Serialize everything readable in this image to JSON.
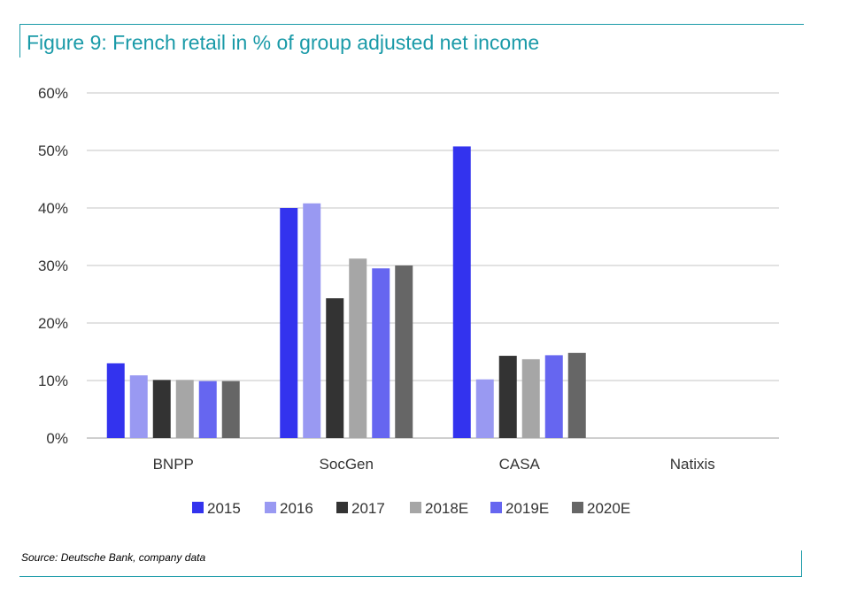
{
  "title": "Figure 9: French retail in % of group adjusted net income",
  "source": "Source: Deutsche Bank, company data",
  "colors": {
    "frame": "#1a9aa8",
    "grid": "#d9d9d9",
    "series": [
      "#3333ee",
      "#9999f2",
      "#333333",
      "#a6a6a6",
      "#6666f0",
      "#666666"
    ]
  },
  "chart_data": {
    "type": "bar",
    "categories": [
      "BNPP",
      "SocGen",
      "CASA",
      "Natixis"
    ],
    "series": [
      {
        "name": "2015",
        "values": [
          13,
          40,
          50.7,
          null
        ]
      },
      {
        "name": "2016",
        "values": [
          10.9,
          40.8,
          10.2,
          null
        ]
      },
      {
        "name": "2017",
        "values": [
          10.1,
          24.3,
          14.3,
          null
        ]
      },
      {
        "name": "2018E",
        "values": [
          10.1,
          31.2,
          13.7,
          null
        ]
      },
      {
        "name": "2019E",
        "values": [
          9.9,
          29.5,
          14.4,
          null
        ]
      },
      {
        "name": "2020E",
        "values": [
          9.9,
          30,
          14.8,
          null
        ]
      }
    ],
    "ylim": [
      0,
      60
    ],
    "yticks": [
      "0%",
      "10%",
      "20%",
      "30%",
      "40%",
      "50%",
      "60%"
    ],
    "ytick_values": [
      0,
      10,
      20,
      30,
      40,
      50,
      60
    ],
    "xlabel": "",
    "ylabel": "",
    "grid": true,
    "legend_position": "bottom"
  }
}
